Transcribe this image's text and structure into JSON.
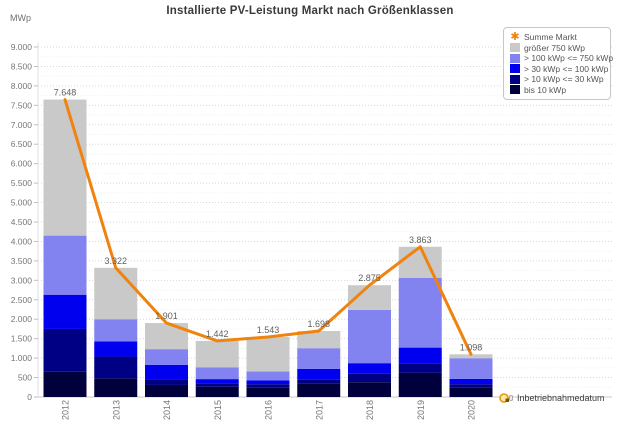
{
  "title": "Installierte PV-Leistung Markt nach Größenklassen",
  "y_axis_unit": "MWp",
  "x_axis_label": "Inbetriebnahmedatum",
  "legend": {
    "items": [
      {
        "label": "Summe Markt",
        "marker": "asterisk",
        "color": "#f0830d"
      },
      {
        "label": "größer 750 kWp",
        "marker": "square",
        "color": "#c9c9c9"
      },
      {
        "label": "> 100 kWp <= 750 kWp",
        "marker": "square",
        "color": "#8282f0"
      },
      {
        "label": "> 30 kWp <= 100 kWp",
        "marker": "square",
        "color": "#0000ee"
      },
      {
        "label": "> 10 kWp <= 30 kWp",
        "marker": "square",
        "color": "#000085"
      },
      {
        "label": "bis 10 kWp",
        "marker": "square",
        "color": "#00003c"
      }
    ]
  },
  "chart_data": {
    "type": "bar",
    "subtype": "stacked-bars-with-total-line",
    "title": "Installierte PV-Leistung Markt nach Größenklassen",
    "xlabel": "Inbetriebnahmedatum",
    "ylabel": "MWp",
    "categories": [
      "2012",
      "2013",
      "2014",
      "2015",
      "2016",
      "2017",
      "2018",
      "2019",
      "2020"
    ],
    "series": [
      {
        "name": "bis 10 kWp",
        "color": "#00003c",
        "values": [
          650,
          480,
          310,
          265,
          240,
          355,
          380,
          620,
          250
        ]
      },
      {
        "name": "> 10 kWp <= 30 kWp",
        "color": "#000085",
        "values": [
          1100,
          560,
          150,
          90,
          90,
          85,
          215,
          250,
          80
        ]
      },
      {
        "name": "> 30 kWp <= 100 kWp",
        "color": "#0000ee",
        "values": [
          880,
          390,
          365,
          105,
          95,
          285,
          275,
          400,
          135
        ]
      },
      {
        "name": "> 100 kWp <= 750 kWp",
        "color": "#8282f0",
        "values": [
          1520,
          570,
          405,
          305,
          230,
          530,
          1370,
          1790,
          532
        ]
      },
      {
        "name": "größer 750 kWp",
        "color": "#c9c9c9",
        "values": [
          3498,
          1322,
          671,
          677,
          888,
          443,
          635,
          803,
          101
        ]
      }
    ],
    "line_series": {
      "name": "Summe Markt",
      "color": "#f0830d",
      "values": [
        7648,
        3322,
        1901,
        1442,
        1543,
        1698,
        2875,
        3863,
        1098
      ]
    },
    "total_labels": [
      "7.648",
      "3.322",
      "1.901",
      "1.442",
      "1.543",
      "1.698",
      "2.875",
      "3.863",
      "1.098"
    ],
    "ylim": [
      0,
      9000
    ],
    "y_tick_step": 500,
    "y_minor_step": 250,
    "y_tick_values": [
      0,
      500,
      1000,
      1500,
      2000,
      2500,
      3000,
      3500,
      4000,
      4500,
      5000,
      5500,
      6000,
      6500,
      7000,
      7500,
      8000,
      8500,
      9000
    ],
    "y_tick_labels": [
      "0",
      "500",
      "1.000",
      "1.500",
      "2.000",
      "2.500",
      "3.000",
      "3.500",
      "4.000",
      "4.500",
      "5.000",
      "5.500",
      "6.000",
      "6.500",
      "7.000",
      "7.500",
      "8.000",
      "8.500",
      "9.000"
    ],
    "grid": "dotted-horizontal",
    "legend_position": "top-right"
  }
}
